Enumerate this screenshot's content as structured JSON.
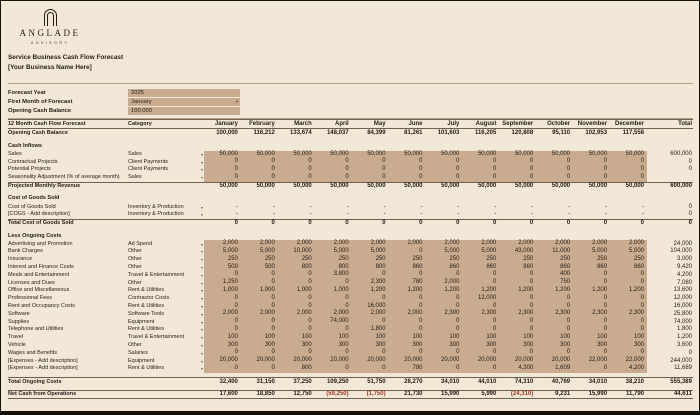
{
  "colors": {
    "background": "#f2e8d7",
    "input_cell": "#c9ac8f",
    "negative": "#a03a28"
  },
  "logo": {
    "name": "ANGLADE",
    "tagline": "ADVISORY"
  },
  "header": {
    "title": "Service Business Cash Flow Forecast",
    "subtitle": "[Your Business Name Here]"
  },
  "settings": {
    "rows": [
      {
        "label": "Forecast Year",
        "value": "2025"
      },
      {
        "label": "First Month of Forecast",
        "value": "January"
      },
      {
        "label": "Opening Cash Balance",
        "value": "100,000"
      }
    ]
  },
  "table": {
    "title": "12 Month Cash Flow Forecast",
    "category_header": "Category",
    "total_header": "Total",
    "months": [
      "January",
      "February",
      "March",
      "April",
      "May",
      "June",
      "July",
      "August",
      "September",
      "October",
      "November",
      "December"
    ],
    "rows": [
      {
        "type": "computed",
        "label": "Opening Cash Balance",
        "category": "",
        "values": [
          "100,000",
          "116,212",
          "133,674",
          "148,037",
          "84,399",
          "81,261",
          "101,603",
          "116,205",
          "120,808",
          "95,110",
          "102,953",
          "117,558"
        ],
        "total": ""
      },
      {
        "type": "spacer"
      },
      {
        "type": "section",
        "label": "Cash Inflows"
      },
      {
        "type": "input",
        "label": "Sales",
        "category": "Sales",
        "values": [
          "50,000",
          "50,000",
          "50,000",
          "50,000",
          "50,000",
          "50,000",
          "50,000",
          "50,000",
          "50,000",
          "50,000",
          "50,000",
          "50,000"
        ],
        "total": "600,000"
      },
      {
        "type": "input",
        "label": "Contractual Projects",
        "category": "Client Payments",
        "values": [
          "0",
          "0",
          "0",
          "0",
          "0",
          "0",
          "0",
          "0",
          "0",
          "0",
          "0",
          "0"
        ],
        "total": "0"
      },
      {
        "type": "input",
        "label": "Potential Projects",
        "category": "Client Payments",
        "values": [
          "0",
          "0",
          "0",
          "0",
          "0",
          "0",
          "0",
          "0",
          "0",
          "0",
          "0",
          "0"
        ],
        "total": "0"
      },
      {
        "type": "input",
        "label": "Seasonality Adjustment (% of average month)",
        "category": "Sales",
        "values": [
          "0",
          "0",
          "0",
          "0",
          "0",
          "0",
          "0",
          "0",
          "0",
          "0",
          "0",
          "0"
        ],
        "total": ""
      },
      {
        "type": "computed",
        "rule": true,
        "label": "Projected Monthly Revenue",
        "category": "",
        "values": [
          "50,000",
          "50,000",
          "50,000",
          "50,000",
          "50,000",
          "50,000",
          "50,000",
          "50,000",
          "50,000",
          "50,000",
          "50,000",
          "50,000"
        ],
        "total": "600,000"
      },
      {
        "type": "spacer"
      },
      {
        "type": "section",
        "label": "Cost of Goods Sold"
      },
      {
        "type": "input",
        "nofill": true,
        "label": "Cost of Goods Sold",
        "category": "Inventory & Production",
        "values": [
          "-",
          "-",
          "-",
          "-",
          "-",
          "-",
          "-",
          "-",
          "-",
          "-",
          "-",
          "-"
        ],
        "total": "0"
      },
      {
        "type": "input",
        "nofill": true,
        "label": "[COGS - Add description]",
        "category": "Inventory & Production",
        "values": [
          "-",
          "-",
          "-",
          "-",
          "-",
          "-",
          "-",
          "-",
          "-",
          "-",
          "-",
          "-"
        ],
        "total": "0"
      },
      {
        "type": "computed",
        "rule": true,
        "label": "Total Cost of Goods Sold",
        "category": "",
        "values": [
          "0",
          "0",
          "0",
          "0",
          "0",
          "0",
          "0",
          "0",
          "0",
          "0",
          "0",
          "0"
        ],
        "total": "0"
      },
      {
        "type": "spacer"
      },
      {
        "type": "section",
        "label": "Less Ongoing Costs"
      },
      {
        "type": "input",
        "label": "Advertising and Promotion",
        "category": "Ad Spend",
        "values": [
          "2,000",
          "2,000",
          "2,000",
          "2,000",
          "2,000",
          "2,000",
          "2,000",
          "2,000",
          "2,000",
          "2,000",
          "2,000",
          "2,000"
        ],
        "total": "24,000"
      },
      {
        "type": "input",
        "label": "Bank Charges",
        "category": "Other",
        "values": [
          "5,000",
          "5,000",
          "10,000",
          "5,000",
          "5,000",
          "0",
          "5,000",
          "5,000",
          "43,000",
          "11,000",
          "5,000",
          "5,000"
        ],
        "total": "104,000"
      },
      {
        "type": "input",
        "label": "Insurance",
        "category": "Other",
        "values": [
          "250",
          "250",
          "250",
          "250",
          "250",
          "250",
          "250",
          "250",
          "250",
          "250",
          "250",
          "250"
        ],
        "total": "3,000"
      },
      {
        "type": "input",
        "label": "Interest and Finance Costs",
        "category": "Other",
        "values": [
          "500",
          "500",
          "800",
          "800",
          "800",
          "860",
          "860",
          "860",
          "860",
          "860",
          "860",
          "860"
        ],
        "total": "9,420"
      },
      {
        "type": "input",
        "label": "Meals and Entertainment",
        "category": "Travel & Entertainment",
        "values": [
          "0",
          "0",
          "0",
          "3,800",
          "0",
          "0",
          "0",
          "0",
          "0",
          "400",
          "0",
          "0"
        ],
        "total": "4,200"
      },
      {
        "type": "input",
        "label": "Licenses and Dues",
        "category": "Other",
        "values": [
          "1,250",
          "0",
          "0",
          "0",
          "2,300",
          "780",
          "2,000",
          "0",
          "0",
          "750",
          "0",
          "0"
        ],
        "total": "7,080"
      },
      {
        "type": "input",
        "label": "Office and Miscellaneous",
        "category": "Rent & Utilities",
        "values": [
          "1,000",
          "1,000",
          "1,000",
          "1,000",
          "1,200",
          "1,200",
          "1,200",
          "1,200",
          "1,200",
          "1,200",
          "1,200",
          "1,200"
        ],
        "total": "13,600"
      },
      {
        "type": "input",
        "label": "Professional Fees",
        "category": "Contractor Costs",
        "values": [
          "0",
          "0",
          "0",
          "0",
          "0",
          "0",
          "0",
          "12,000",
          "0",
          "0",
          "0",
          "0"
        ],
        "total": "12,000"
      },
      {
        "type": "input",
        "label": "Rent and Occupancy Costs",
        "category": "Rent & Utilities",
        "values": [
          "0",
          "0",
          "0",
          "0",
          "16,000",
          "0",
          "0",
          "0",
          "0",
          "0",
          "0",
          "0"
        ],
        "total": "16,000"
      },
      {
        "type": "input",
        "label": "Software",
        "category": "Software Tools",
        "values": [
          "2,000",
          "2,000",
          "2,000",
          "2,000",
          "2,000",
          "2,000",
          "2,300",
          "2,300",
          "2,300",
          "2,300",
          "2,300",
          "2,300"
        ],
        "total": "25,800"
      },
      {
        "type": "input",
        "label": "Supplies",
        "category": "Equipment",
        "values": [
          "0",
          "0",
          "0",
          "74,000",
          "0",
          "0",
          "0",
          "0",
          "0",
          "0",
          "0",
          "0"
        ],
        "total": "74,000"
      },
      {
        "type": "input",
        "label": "Telephone and Utilities",
        "category": "Rent & Utilities",
        "values": [
          "0",
          "0",
          "0",
          "0",
          "1,800",
          "0",
          "0",
          "0",
          "0",
          "0",
          "0",
          "0"
        ],
        "total": "1,800"
      },
      {
        "type": "input",
        "label": "Travel",
        "category": "Travel & Entertainment",
        "values": [
          "100",
          "100",
          "100",
          "100",
          "100",
          "100",
          "100",
          "100",
          "100",
          "100",
          "100",
          "100"
        ],
        "total": "1,200"
      },
      {
        "type": "input",
        "label": "Vehicle",
        "category": "Other",
        "values": [
          "300",
          "300",
          "300",
          "300",
          "300",
          "300",
          "300",
          "300",
          "300",
          "300",
          "300",
          "300"
        ],
        "total": "3,600"
      },
      {
        "type": "input",
        "label": "Wages and Benefits",
        "category": "Salaries",
        "values": [
          "0",
          "0",
          "0",
          "0",
          "0",
          "0",
          "0",
          "0",
          "0",
          "0",
          "0",
          "0"
        ],
        "total": "0"
      },
      {
        "type": "input",
        "label": "[Expenses - Add description]",
        "category": "Equipment",
        "values": [
          "20,000",
          "20,000",
          "20,000",
          "20,000",
          "20,000",
          "20,000",
          "20,000",
          "20,000",
          "20,000",
          "20,000",
          "22,000",
          "22,000"
        ],
        "total": "244,000"
      },
      {
        "type": "input",
        "label": "[Expenses - Add description]",
        "category": "Rent & Utilities",
        "values": [
          "0",
          "0",
          "800",
          "0",
          "0",
          "780",
          "0",
          "0",
          "4,300",
          "1,609",
          "0",
          "4,200"
        ],
        "total": "11,689"
      },
      {
        "type": "spacer"
      },
      {
        "type": "computed",
        "rule": true,
        "label": "Total Ongoing Costs",
        "category": "",
        "values": [
          "32,400",
          "31,150",
          "37,250",
          "109,250",
          "51,750",
          "28,270",
          "34,010",
          "44,010",
          "74,310",
          "40,769",
          "34,010",
          "38,210"
        ],
        "total": "555,389"
      },
      {
        "type": "spacer"
      },
      {
        "type": "computed",
        "rule": true,
        "net": true,
        "label": "Net Cash from Operations",
        "category": "",
        "values": [
          "17,600",
          "18,850",
          "12,750",
          "(59,250)",
          "(1,750)",
          "21,730",
          "15,990",
          "5,990",
          "(24,310)",
          "9,231",
          "15,990",
          "11,790"
        ],
        "total": "44,611"
      }
    ]
  }
}
